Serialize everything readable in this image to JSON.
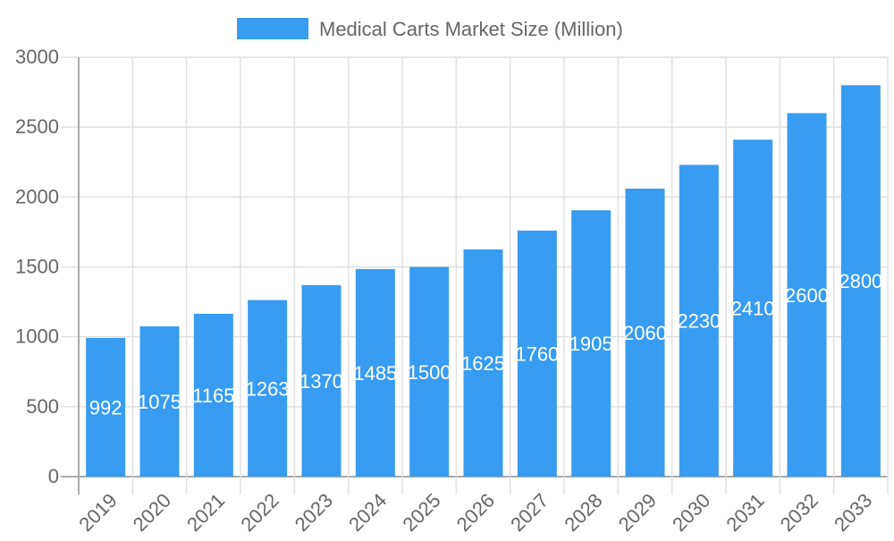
{
  "chart_data": {
    "type": "bar",
    "title": "",
    "xlabel": "",
    "ylabel": "",
    "legend": {
      "position": "top",
      "entries": [
        "Medical Carts Market Size (Million)"
      ]
    },
    "categories": [
      "2019",
      "2020",
      "2021",
      "2022",
      "2023",
      "2024",
      "2025",
      "2026",
      "2027",
      "2028",
      "2029",
      "2030",
      "2031",
      "2032",
      "2033"
    ],
    "series": [
      {
        "name": "Medical Carts Market Size (Million)",
        "values": [
          992,
          1075,
          1165,
          1263,
          1370,
          1485,
          1500,
          1625,
          1760,
          1905,
          2060,
          2230,
          2410,
          2600,
          2800
        ],
        "color": "#389cf0"
      }
    ],
    "ylim": [
      0,
      3000
    ],
    "yticks": [
      0,
      500,
      1000,
      1500,
      2000,
      2500,
      3000
    ],
    "grid": true,
    "data_labels": true
  }
}
